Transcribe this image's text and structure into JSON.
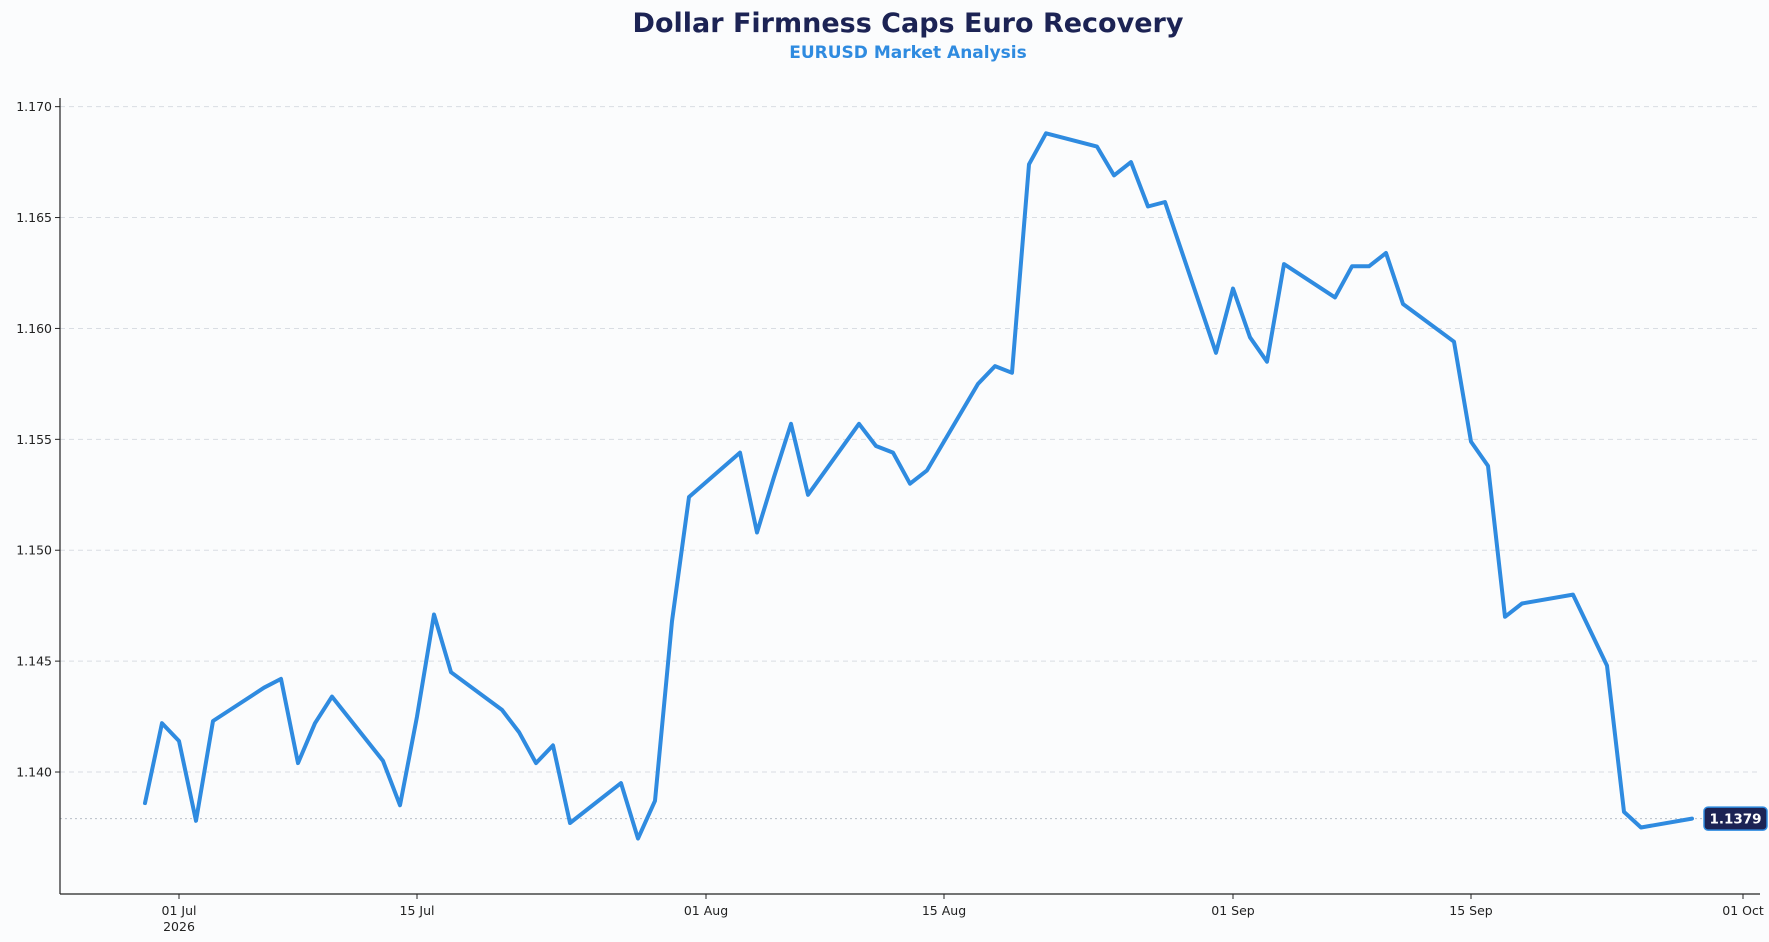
{
  "chart_data": {
    "type": "line",
    "title": "Dollar Firmness Caps Euro Recovery",
    "subtitle": "EURUSD Market Analysis",
    "xlabel": "",
    "ylabel": "",
    "xlim": [
      "2026-06-24",
      "2026-10-02"
    ],
    "ylim": [
      1.1345,
      1.1703
    ],
    "y_ticks": [
      1.14,
      1.145,
      1.15,
      1.155,
      1.16,
      1.165,
      1.17
    ],
    "y_tick_labels": [
      "1.140",
      "1.145",
      "1.150",
      "1.155",
      "1.160",
      "1.165",
      "1.170"
    ],
    "x_ticks": [
      {
        "date": "2026-07-01",
        "label": "01 Jul",
        "sublabel": "2026"
      },
      {
        "date": "2026-07-15",
        "label": "15 Jul",
        "sublabel": ""
      },
      {
        "date": "2026-08-01",
        "label": "01 Aug",
        "sublabel": ""
      },
      {
        "date": "2026-08-15",
        "label": "15 Aug",
        "sublabel": ""
      },
      {
        "date": "2026-09-01",
        "label": "01 Sep",
        "sublabel": ""
      },
      {
        "date": "2026-09-15",
        "label": "15 Sep",
        "sublabel": ""
      },
      {
        "date": "2026-10-01",
        "label": "01 Oct",
        "sublabel": ""
      }
    ],
    "grid": "horizontal dashed",
    "series": [
      {
        "name": "",
        "color": "#2f8be0",
        "x": [
          "2026-06-29",
          "2026-06-30",
          "2026-07-01",
          "2026-07-02",
          "2026-07-03",
          "2026-07-06",
          "2026-07-07",
          "2026-07-08",
          "2026-07-09",
          "2026-07-10",
          "2026-07-13",
          "2026-07-14",
          "2026-07-15",
          "2026-07-16",
          "2026-07-17",
          "2026-07-20",
          "2026-07-21",
          "2026-07-22",
          "2026-07-23",
          "2026-07-24",
          "2026-07-27",
          "2026-07-28",
          "2026-07-29",
          "2026-07-30",
          "2026-07-31",
          "2026-08-03",
          "2026-08-04",
          "2026-08-05",
          "2026-08-06",
          "2026-08-07",
          "2026-08-10",
          "2026-08-11",
          "2026-08-12",
          "2026-08-13",
          "2026-08-14",
          "2026-08-17",
          "2026-08-18",
          "2026-08-19",
          "2026-08-20",
          "2026-08-21",
          "2026-08-24",
          "2026-08-25",
          "2026-08-26",
          "2026-08-27",
          "2026-08-28",
          "2026-08-31",
          "2026-09-01",
          "2026-09-02",
          "2026-09-03",
          "2026-09-04",
          "2026-09-07",
          "2026-09-08",
          "2026-09-09",
          "2026-09-10",
          "2026-09-11",
          "2026-09-14",
          "2026-09-15",
          "2026-09-16",
          "2026-09-17",
          "2026-09-18",
          "2026-09-21",
          "2026-09-22",
          "2026-09-23",
          "2026-09-24",
          "2026-09-25",
          "2026-09-28"
        ],
        "y": [
          1.1386,
          1.1422,
          1.1414,
          1.1378,
          1.1423,
          1.1438,
          1.1442,
          1.1404,
          1.1422,
          1.1434,
          1.1405,
          1.1385,
          1.1425,
          1.1471,
          1.1445,
          1.1428,
          1.1418,
          1.1404,
          1.1412,
          1.1377,
          1.1395,
          1.137,
          1.1387,
          1.1468,
          1.1524,
          1.1544,
          1.1508,
          1.1533,
          1.1557,
          1.1525,
          1.1557,
          1.1547,
          1.1544,
          1.153,
          1.1536,
          1.1575,
          1.1583,
          1.158,
          1.1674,
          1.1688,
          1.1682,
          1.1669,
          1.1675,
          1.1655,
          1.1657,
          1.1589,
          1.1618,
          1.1596,
          1.1585,
          1.1629,
          1.1614,
          1.1628,
          1.1628,
          1.1634,
          1.1611,
          1.1594,
          1.1549,
          1.1538,
          1.147,
          1.1476,
          1.148,
          1.1464,
          1.1448,
          1.1382,
          1.1375,
          1.1379
        ]
      }
    ],
    "last_value": 1.1379,
    "last_value_label": "1.1379",
    "badge_color": "#1c2354"
  }
}
